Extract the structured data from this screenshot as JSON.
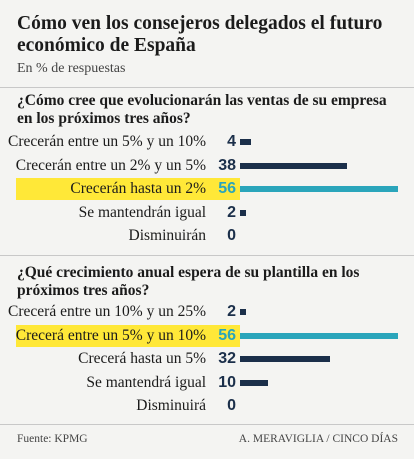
{
  "chart_data": {
    "type": "bar",
    "title": "Cómo ven los consejeros delegados el futuro económico de España",
    "subtitle": "En % de respuestas",
    "source": "Fuente: KPMG",
    "credit": "A. MERAVIGLIA / CINCO DÍAS",
    "colors": {
      "bar": "#1b2f4a",
      "highlight_bar": "#2aa5bb",
      "highlight_bg": "#ffe838"
    },
    "xlim": [
      0,
      56
    ],
    "panels": [
      {
        "question": "¿Cómo cree que evolucionarán las ventas de su empresa en los próximos tres años?",
        "categories": [
          "Crecerán entre un 5% y un 10%",
          "Crecerán entre un 2% y un 5%",
          "Crecerán hasta un 2%",
          "Se mantendrán igual",
          "Disminuirán"
        ],
        "values": [
          4,
          38,
          56,
          2,
          0
        ],
        "highlight": [
          false,
          false,
          true,
          false,
          false
        ]
      },
      {
        "question": "¿Qué crecimiento anual espera de su plantilla en los próximos tres años?",
        "categories": [
          "Crecerá entre un 10% y un 25%",
          "Crecerá entre un 5% y un 10%",
          "Crecerá hasta un 5%",
          "Se mantendrá igual",
          "Disminuirá"
        ],
        "values": [
          2,
          56,
          32,
          10,
          0
        ],
        "highlight": [
          false,
          true,
          false,
          false,
          false
        ]
      }
    ]
  }
}
